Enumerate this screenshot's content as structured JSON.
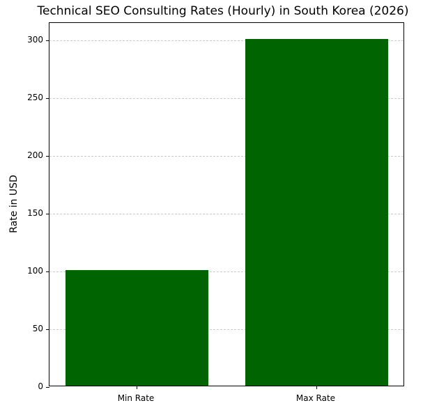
{
  "chart_data": {
    "type": "bar",
    "title": "Technical SEO Consulting Rates (Hourly) in South Korea (2026)",
    "xlabel": "",
    "ylabel": "Rate in USD",
    "categories": [
      "Min Rate",
      "Max Rate"
    ],
    "values": [
      100,
      300
    ],
    "ylim": [
      0,
      315
    ],
    "yticks": [
      0,
      50,
      100,
      150,
      200,
      250,
      300
    ],
    "grid": {
      "axis": "y",
      "style": "dashed"
    },
    "legend": null,
    "colors": {
      "bar": "#006400",
      "grid": "#c8c8c8"
    }
  }
}
